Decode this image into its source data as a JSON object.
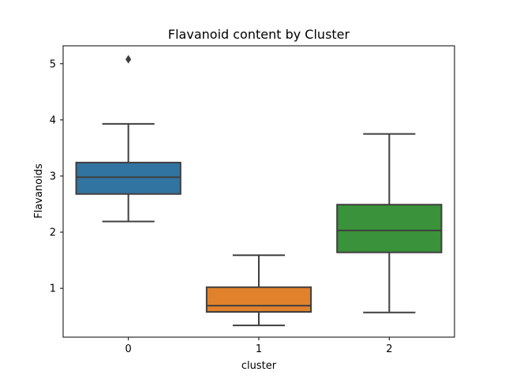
{
  "chart_data": {
    "type": "box",
    "title": "Flavanoid content by Cluster",
    "xlabel": "cluster",
    "ylabel": "Flavanoids",
    "categories": [
      "0",
      "1",
      "2"
    ],
    "ylim": [
      0.13,
      5.32
    ],
    "yticks": [
      1,
      2,
      3,
      4,
      5
    ],
    "grid": false,
    "boxes": [
      {
        "category": "0",
        "whisker_low": 2.19,
        "q1": 2.68,
        "median": 2.98,
        "q3": 3.24,
        "whisker_high": 3.93,
        "outliers": [
          5.08
        ],
        "color": "#3274a1"
      },
      {
        "category": "1",
        "whisker_low": 0.34,
        "q1": 0.58,
        "median": 0.69,
        "q3": 1.02,
        "whisker_high": 1.59,
        "outliers": [],
        "color": "#e1812c"
      },
      {
        "category": "2",
        "whisker_low": 0.57,
        "q1": 1.64,
        "median": 2.03,
        "q3": 2.49,
        "whisker_high": 3.75,
        "outliers": [],
        "color": "#3a923a"
      }
    ],
    "line_color": "#3f3f3f"
  }
}
